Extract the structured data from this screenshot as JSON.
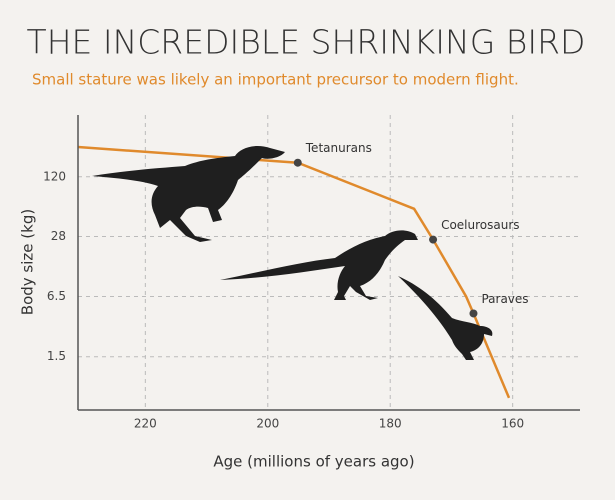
{
  "chart_data": {
    "type": "line",
    "title": "THE INCREDIBLE SHRINKING BIRD",
    "subtitle": "Small stature was likely an important precursor to modern flight.",
    "xlabel": "Age (millions of years ago)",
    "ylabel": "Body size (kg)",
    "x": [
      231,
      195.1,
      176.1,
      173,
      167.6,
      166.4,
      160.6
    ],
    "series": [
      {
        "color": "#e08a2c",
        "values": [
          248,
          169,
          55,
          26,
          6.5,
          4.3,
          0.55
        ]
      }
    ],
    "xlim": [
      231,
      149
    ],
    "xticks": [
      220,
      200,
      180,
      160
    ],
    "ylim": [
      0.41,
      540
    ],
    "yticks": [
      1.5,
      6.5,
      28,
      120
    ],
    "log_y": true,
    "grid": true,
    "annotations": [
      {
        "text": "Tetanurans",
        "x": 195.1,
        "y": 169
      },
      {
        "text": "Coelurosaurs",
        "x": 173,
        "y": 26
      },
      {
        "text": "Paraves",
        "x": 166.4,
        "y": 4.3
      }
    ]
  }
}
